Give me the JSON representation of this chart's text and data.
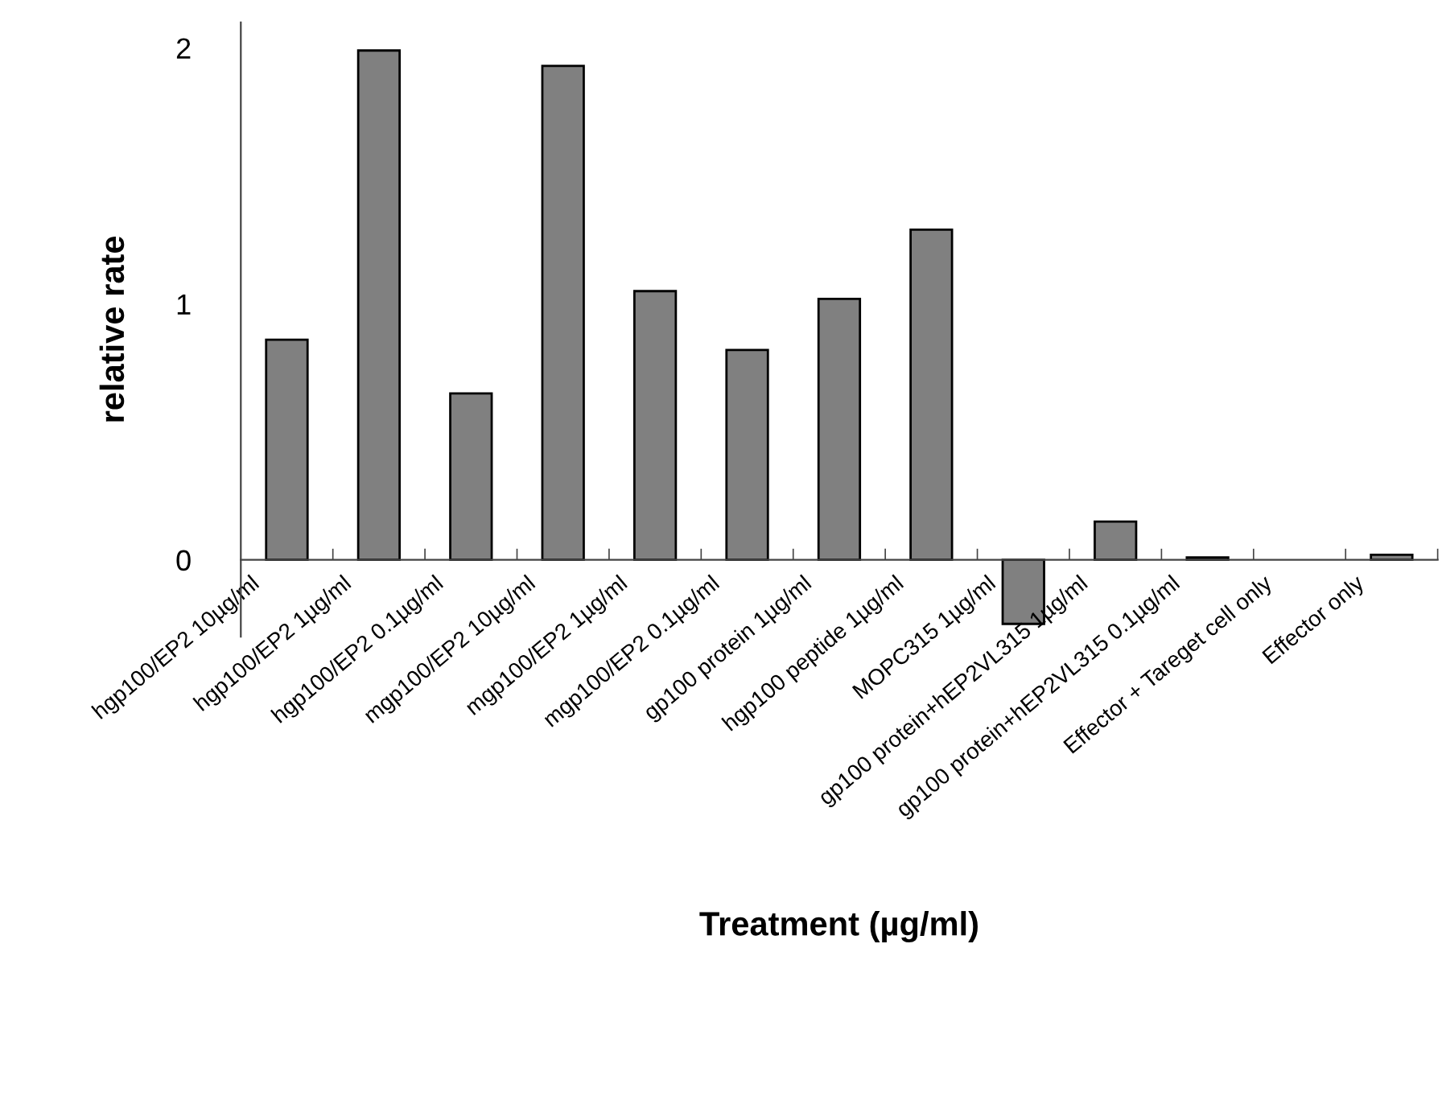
{
  "chart_data": {
    "type": "bar",
    "xlabel": "Treatment (µg/ml)",
    "ylabel": "relative rate",
    "categories": [
      "hgp100/EP2 10µg/ml",
      "hgp100/EP2 1µg/ml",
      "hgp100/EP2 0.1µg/ml",
      "mgp100/EP2 10µg/ml",
      "mgp100/EP2 1µg/ml",
      "mgp100/EP2 0.1µg/ml",
      "gp100 protein 1µg/ml",
      "hgp100 peptide 1µg/ml",
      "MOPC315 1µg/ml",
      "gp100 protein+hEP2VL315 1µg/ml",
      "gp100 protein+hEP2VL315 0.1µg/ml",
      "Effector + Tareget cell only",
      "Effector only"
    ],
    "values": [
      0.86,
      1.99,
      0.65,
      1.93,
      1.05,
      0.82,
      1.02,
      1.29,
      -0.25,
      0.15,
      0.01,
      null,
      0.02
    ],
    "color": "#808080",
    "ylim": [
      -0.3,
      2.1
    ],
    "yticks": [
      0,
      1,
      2
    ],
    "grid": false,
    "legend": false
  }
}
